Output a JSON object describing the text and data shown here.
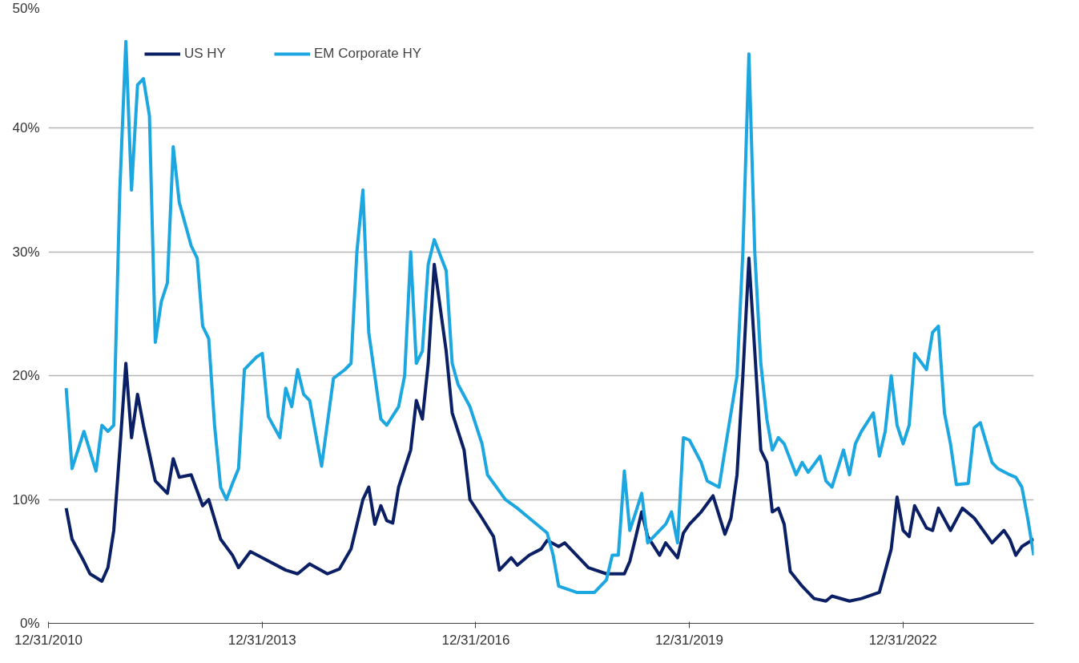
{
  "chart_data": {
    "type": "line",
    "xlim": [
      "2010-12-31",
      "2024-11-01"
    ],
    "xticks": [
      {
        "value": "2010-12-31",
        "label": "12/31/2010"
      },
      {
        "value": "2013-12-31",
        "label": "12/31/2013"
      },
      {
        "value": "2016-12-31",
        "label": "12/31/2016"
      },
      {
        "value": "2019-12-31",
        "label": "12/31/2019"
      },
      {
        "value": "2022-12-31",
        "label": "12/31/2022"
      }
    ],
    "ylim": [
      0,
      50
    ],
    "yticks": [
      {
        "value": 0,
        "label": "0%"
      },
      {
        "value": 10,
        "label": "10%"
      },
      {
        "value": 20,
        "label": "20%"
      },
      {
        "value": 30,
        "label": "30%"
      },
      {
        "value": 40,
        "label": "40%"
      },
      {
        "value": 50,
        "label": "50%"
      }
    ],
    "grid": "y",
    "legend": "top left",
    "marker": "none",
    "line_style": "solid",
    "series": [
      {
        "name": "US HY",
        "color": "#0b1f65",
        "x": [
          "2011-04",
          "2011-05",
          "2011-07",
          "2011-08",
          "2011-10",
          "2011-11",
          "2011-12",
          "2012-01",
          "2012-02",
          "2012-03",
          "2012-04",
          "2012-05",
          "2012-07",
          "2012-09",
          "2012-10",
          "2012-11",
          "2013-01",
          "2013-03",
          "2013-04",
          "2013-06",
          "2013-08",
          "2013-09",
          "2013-11",
          "2014-01",
          "2014-05",
          "2014-07",
          "2014-09",
          "2014-12",
          "2015-02",
          "2015-04",
          "2015-06",
          "2015-07",
          "2015-08",
          "2015-09",
          "2015-10",
          "2015-11",
          "2015-12",
          "2016-02",
          "2016-03",
          "2016-04",
          "2016-05",
          "2016-06",
          "2016-08",
          "2016-09",
          "2016-11",
          "2016-12",
          "2017-02",
          "2017-04",
          "2017-05",
          "2017-07",
          "2017-08",
          "2017-10",
          "2017-12",
          "2018-01",
          "2018-03",
          "2018-04",
          "2018-06",
          "2018-08",
          "2018-11",
          "2019-02",
          "2019-03",
          "2019-04",
          "2019-05",
          "2019-06",
          "2019-08",
          "2019-09",
          "2019-11",
          "2019-12",
          "2020-01",
          "2020-03",
          "2020-05",
          "2020-07",
          "2020-08",
          "2020-09",
          "2020-10",
          "2020-11",
          "2020-12",
          "2021-01",
          "2021-02",
          "2021-03",
          "2021-04",
          "2021-05",
          "2021-06",
          "2021-08",
          "2021-10",
          "2021-12",
          "2022-01",
          "2022-04",
          "2022-06",
          "2022-09",
          "2022-11",
          "2022-12",
          "2023-01",
          "2023-02",
          "2023-03",
          "2023-05",
          "2023-06",
          "2023-07",
          "2023-09",
          "2023-11",
          "2024-01",
          "2024-03",
          "2024-04",
          "2024-06",
          "2024-07",
          "2024-08",
          "2024-09",
          "2024-11"
        ],
        "values": [
          9.3,
          6.8,
          5.0,
          4.0,
          3.4,
          4.5,
          7.5,
          14,
          21,
          15,
          18.5,
          16,
          11.5,
          10.5,
          13.3,
          11.8,
          12.0,
          9.5,
          10.0,
          6.8,
          5.5,
          4.5,
          5.8,
          5.3,
          4.3,
          4.0,
          4.8,
          4.0,
          4.4,
          6.0,
          10.0,
          11.0,
          8.0,
          9.5,
          8.3,
          8.1,
          11.0,
          14.0,
          18.0,
          16.5,
          21.0,
          29.0,
          22.0,
          17.0,
          14.0,
          10.0,
          8.5,
          7.0,
          4.3,
          5.3,
          4.7,
          5.5,
          6.0,
          6.7,
          6.2,
          6.5,
          5.5,
          4.5,
          4.0,
          4.0,
          5.0,
          7.0,
          9.0,
          7.0,
          5.5,
          6.5,
          5.3,
          7.3,
          8.0,
          9.0,
          10.3,
          7.2,
          8.5,
          12.0,
          20,
          29.5,
          22,
          14,
          13,
          9.0,
          9.3,
          8.0,
          4.2,
          3.0,
          2.0,
          1.8,
          2.2,
          1.8,
          2.0,
          2.5,
          6.0,
          10.2,
          7.5,
          7.0,
          9.5,
          7.7,
          7.5,
          9.3,
          7.5,
          9.3,
          8.5,
          7.2,
          6.5,
          7.5,
          6.8,
          5.5,
          6.2,
          6.8
        ]
      },
      {
        "name": "EM Corporate HY",
        "color": "#1ca7e0",
        "x": [
          "2011-04",
          "2011-05",
          "2011-07",
          "2011-09",
          "2011-10",
          "2011-11",
          "2011-12",
          "2012-01",
          "2012-02",
          "2012-03",
          "2012-04",
          "2012-05",
          "2012-06",
          "2012-07",
          "2012-08",
          "2012-09",
          "2012-10",
          "2012-11",
          "2013-01",
          "2013-02",
          "2013-03",
          "2013-04",
          "2013-05",
          "2013-06",
          "2013-07",
          "2013-08",
          "2013-09",
          "2013-10",
          "2013-12",
          "2014-01",
          "2014-02",
          "2014-04",
          "2014-05",
          "2014-06",
          "2014-07",
          "2014-08",
          "2014-09",
          "2014-11",
          "2015-01",
          "2015-03",
          "2015-04",
          "2015-05",
          "2015-06",
          "2015-07",
          "2015-09",
          "2015-10",
          "2015-12",
          "2016-01",
          "2016-02",
          "2016-03",
          "2016-04",
          "2016-05",
          "2016-06",
          "2016-08",
          "2016-09",
          "2016-10",
          "2016-12",
          "2017-02",
          "2017-03",
          "2017-06",
          "2017-08",
          "2017-10",
          "2018-01",
          "2018-02",
          "2018-03",
          "2018-06",
          "2018-09",
          "2018-11",
          "2018-12",
          "2019-01",
          "2019-02",
          "2019-03",
          "2019-04",
          "2019-05",
          "2019-06",
          "2019-09",
          "2019-10",
          "2019-11",
          "2019-12",
          "2020-01",
          "2020-03",
          "2020-04",
          "2020-06",
          "2020-07",
          "2020-09",
          "2020-10",
          "2020-11",
          "2020-12",
          "2021-01",
          "2021-02",
          "2021-03",
          "2021-04",
          "2021-05",
          "2021-07",
          "2021-08",
          "2021-09",
          "2021-11",
          "2021-12",
          "2022-01",
          "2022-03",
          "2022-04",
          "2022-05",
          "2022-06",
          "2022-08",
          "2022-09",
          "2022-10",
          "2022-11",
          "2022-12",
          "2023-01",
          "2023-02",
          "2023-03",
          "2023-05",
          "2023-06",
          "2023-07",
          "2023-08",
          "2023-09",
          "2023-10",
          "2023-12",
          "2024-01",
          "2024-02",
          "2024-04",
          "2024-05",
          "2024-07",
          "2024-08",
          "2024-09",
          "2024-10",
          "2024-11"
        ],
        "values": [
          19,
          12.5,
          15.5,
          12.3,
          16,
          15.5,
          16,
          35,
          47,
          35,
          43.5,
          44,
          41,
          22.7,
          26,
          27.5,
          38.5,
          34,
          30.5,
          29.5,
          24,
          23,
          16,
          11,
          10,
          11.3,
          12.5,
          20.5,
          21.5,
          21.8,
          16.7,
          15.0,
          19,
          17.5,
          20.5,
          18.5,
          18.0,
          12.7,
          19.8,
          20.5,
          21.0,
          30,
          35,
          23.5,
          16.5,
          16.0,
          17.5,
          20,
          30,
          21,
          22,
          29,
          31,
          28.5,
          21,
          19.3,
          17.5,
          14.5,
          12.0,
          10.0,
          9.3,
          8.5,
          7.3,
          5.5,
          3.0,
          2.5,
          2.5,
          3.5,
          5.5,
          5.5,
          12.3,
          7.5,
          9.0,
          10.5,
          6.5,
          8.0,
          9.0,
          6.5,
          15,
          14.8,
          13,
          11.5,
          11,
          14,
          20,
          30,
          46,
          30,
          21,
          16.5,
          14.0,
          15,
          14.5,
          12.0,
          13.0,
          12.2,
          13.5,
          11.5,
          11.0,
          14.0,
          12.0,
          14.5,
          15.5,
          17.0,
          13.5,
          15.5,
          20,
          16,
          14.5,
          16,
          21.8,
          20.5,
          23.5,
          24,
          17,
          14.5,
          11.2,
          11.3,
          15.8,
          16.2,
          13.0,
          12.5,
          12.0,
          11.8,
          11.0,
          8.5,
          5.5
        ]
      }
    ]
  }
}
